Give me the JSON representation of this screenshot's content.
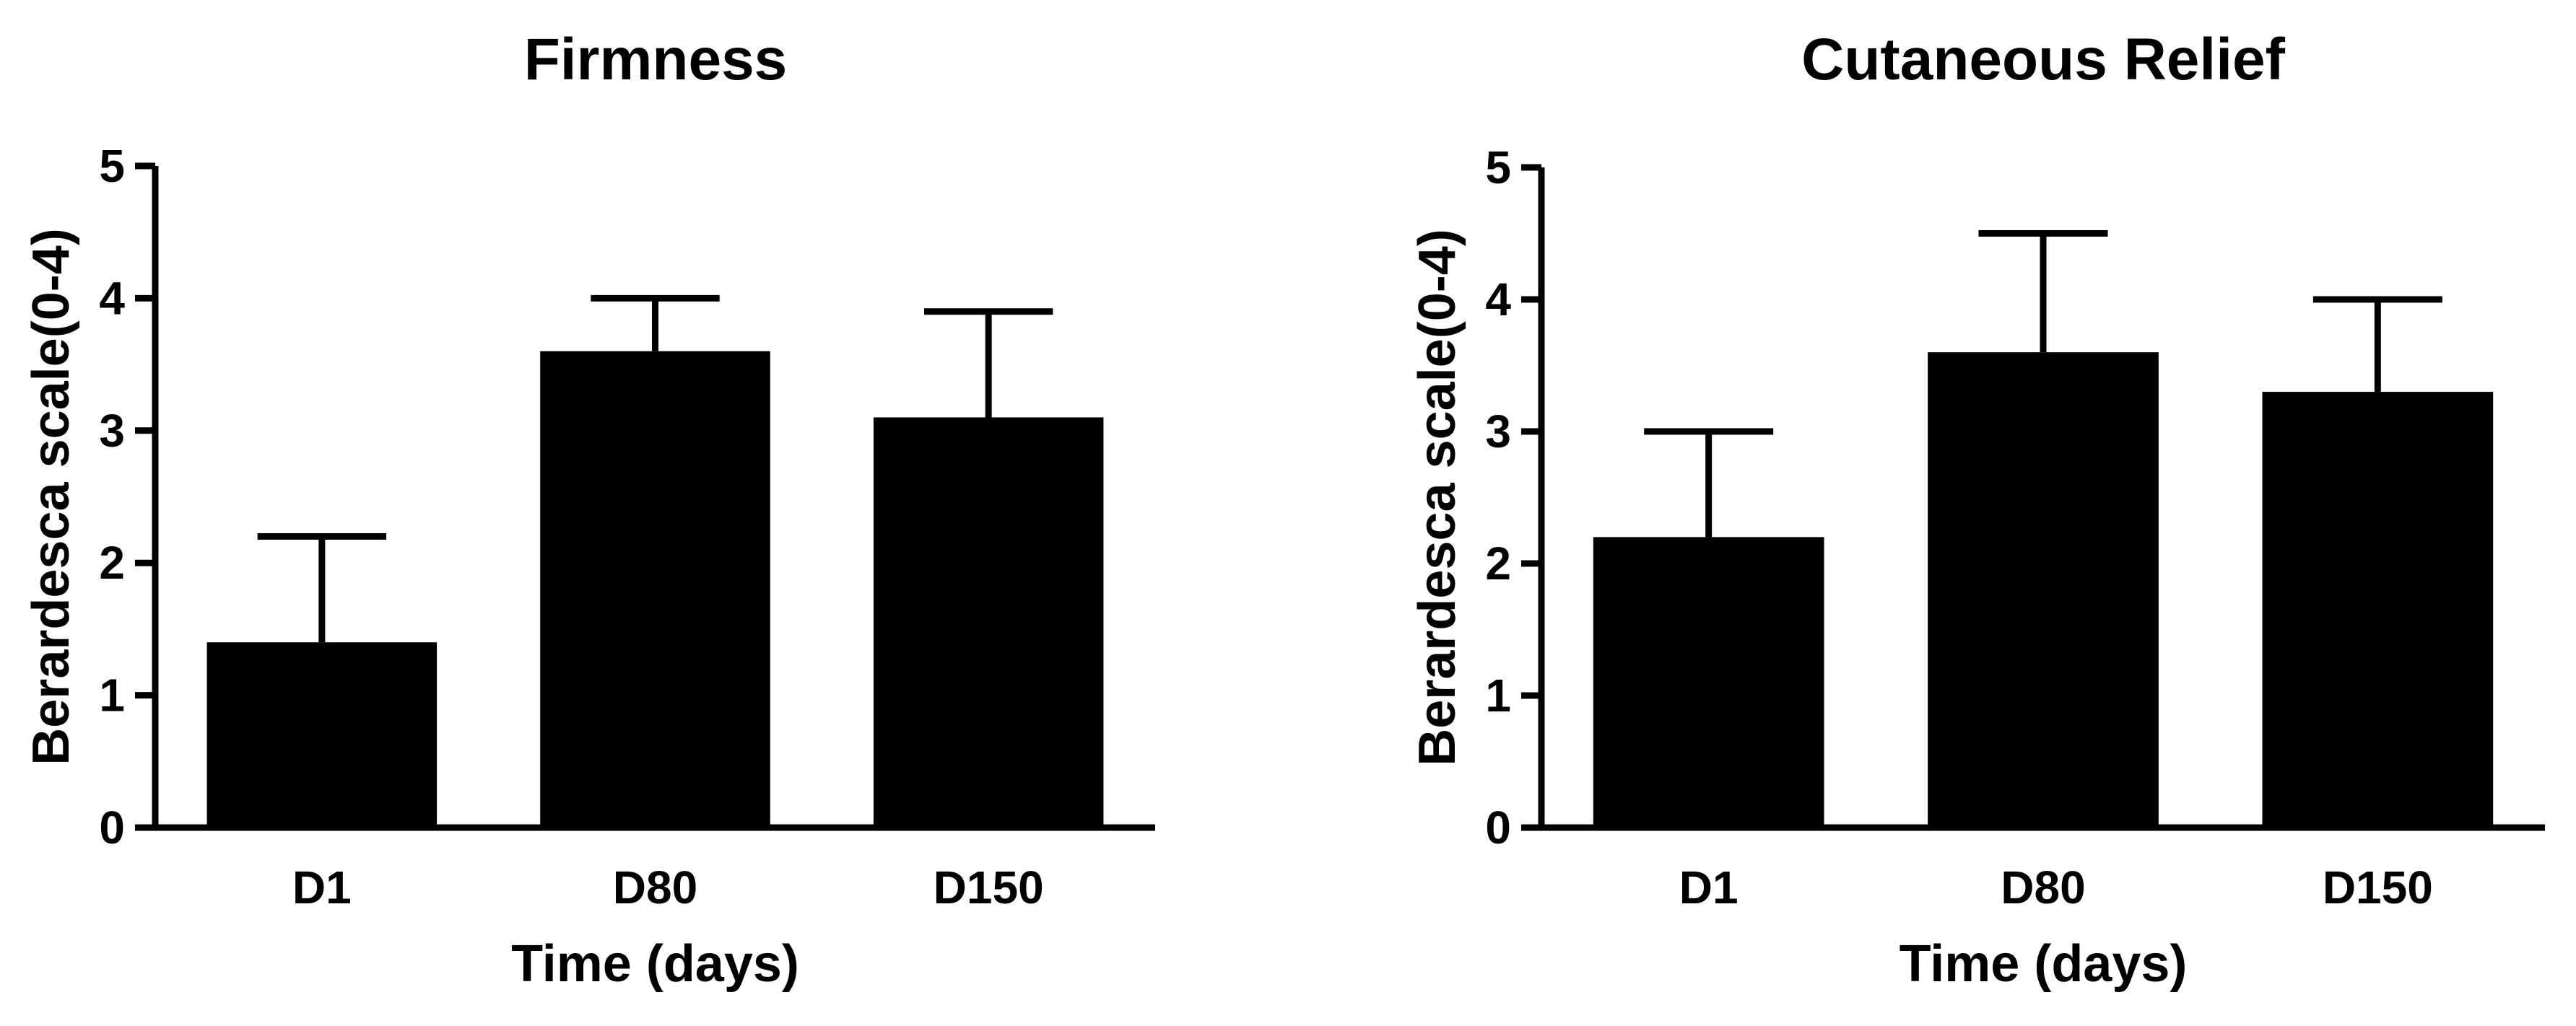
{
  "chart_data": [
    {
      "type": "bar",
      "title": "Firmness",
      "xlabel": "Time (days)",
      "ylabel": "Berardesca scale(0-4)",
      "categories": [
        "D1",
        "D80",
        "D150"
      ],
      "values": [
        1.4,
        3.6,
        3.1
      ],
      "error_upper": [
        2.2,
        4.0,
        3.9
      ],
      "ylim": [
        0,
        5
      ],
      "yticks": [
        "0",
        "1",
        "2",
        "3",
        "4",
        "5"
      ],
      "bar_color": "#000000",
      "grid": false,
      "legend": "none"
    },
    {
      "type": "bar",
      "title": "Cutaneous Relief",
      "xlabel": "Time (days)",
      "ylabel": "Berardesca scale(0-4)",
      "categories": [
        "D1",
        "D80",
        "D150"
      ],
      "values": [
        2.2,
        3.6,
        3.3
      ],
      "error_upper": [
        3.0,
        4.5,
        4.0
      ],
      "ylim": [
        0,
        5
      ],
      "yticks": [
        "0",
        "1",
        "2",
        "3",
        "4",
        "5"
      ],
      "bar_color": "#000000",
      "grid": false,
      "legend": "none"
    }
  ]
}
